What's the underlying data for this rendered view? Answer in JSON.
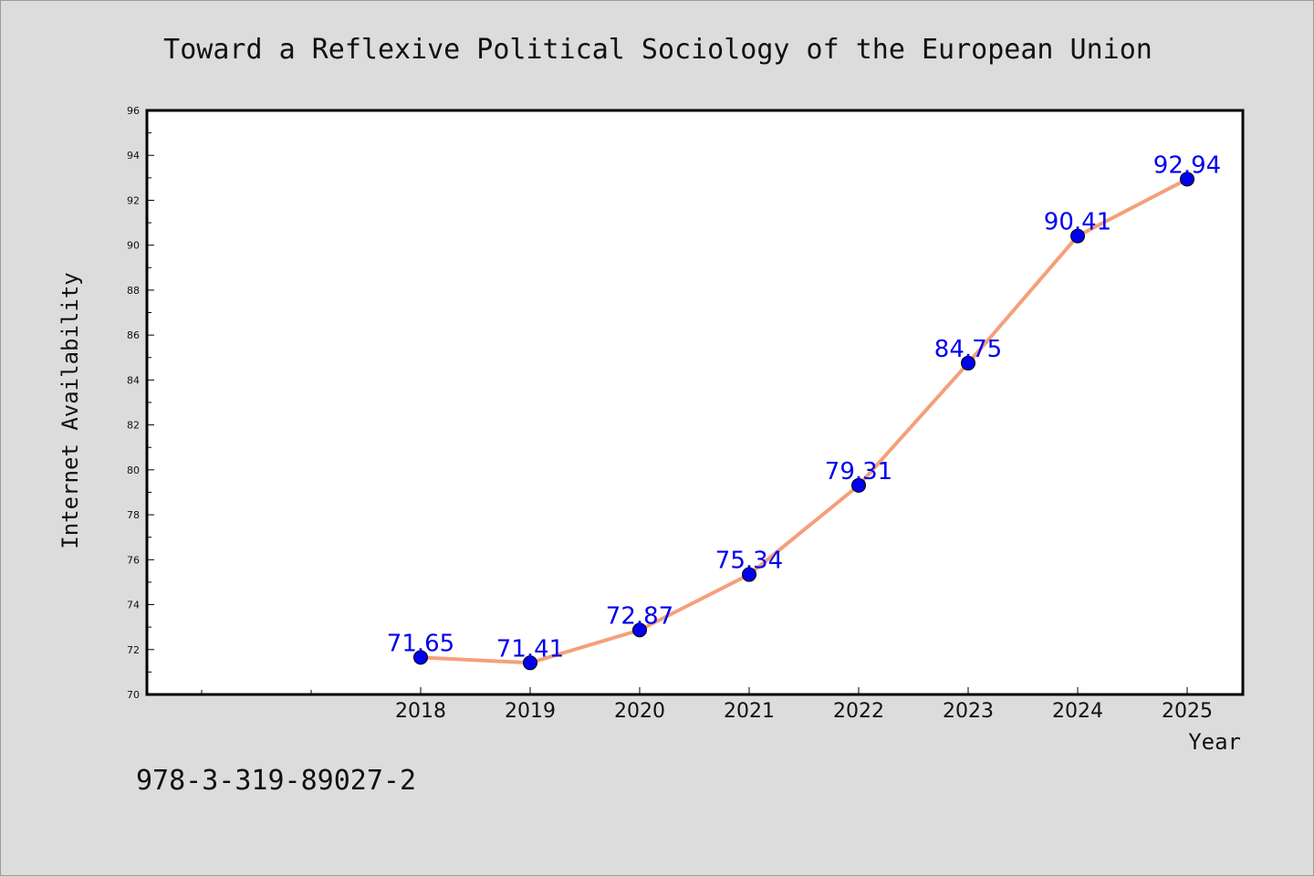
{
  "chart_data": {
    "type": "line",
    "title": "Toward a Reflexive Political Sociology of the European Union",
    "xlabel": "Year",
    "ylabel": "Internet Availability",
    "categories": [
      "2018",
      "2019",
      "2020",
      "2021",
      "2022",
      "2023",
      "2024",
      "2025"
    ],
    "series": [
      {
        "values": [
          71.65,
          71.41,
          72.87,
          75.34,
          79.31,
          84.75,
          90.41,
          92.94
        ],
        "labels": [
          "71.65",
          "71.41",
          "72.87",
          "75.34",
          "79.31",
          "84.75",
          "90.41",
          "92.94"
        ]
      }
    ],
    "ylim": [
      70,
      96
    ],
    "yticks": [
      70,
      72,
      74,
      76,
      78,
      80,
      82,
      84,
      86,
      88,
      90,
      92,
      94,
      96
    ],
    "ytick_labels": [
      "70",
      "72",
      "74",
      "76",
      "78",
      "80",
      "82",
      "84",
      "86",
      "88",
      "90",
      "92",
      "94",
      "96"
    ],
    "grid": false,
    "legend": "none"
  },
  "caption": "978-3-319-89027-2",
  "colors": {
    "background": "#dcdcdc",
    "plot_background": "#ffffff",
    "line": "#f4a07a",
    "marker": "#0000ee",
    "data_label": "#0000ee"
  }
}
